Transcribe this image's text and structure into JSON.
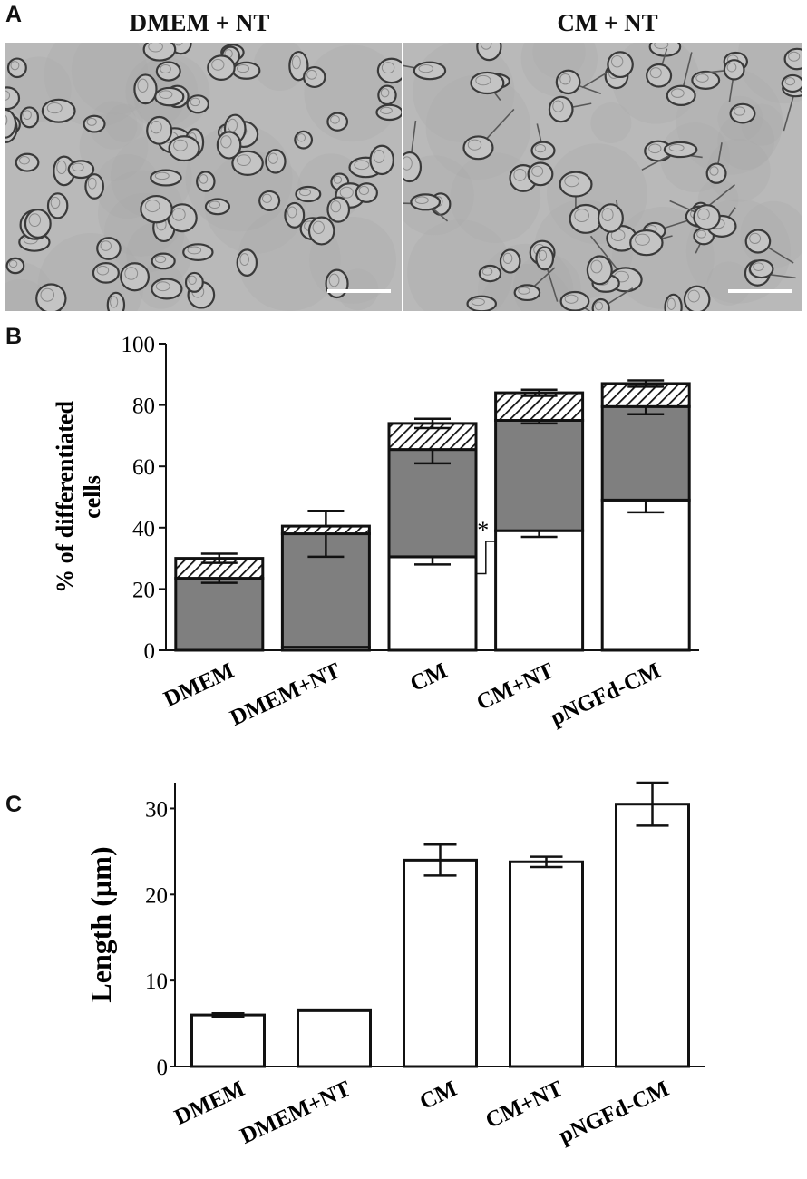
{
  "panels": {
    "a": {
      "letter": "A"
    },
    "b": {
      "letter": "B"
    },
    "c": {
      "letter": "C"
    }
  },
  "micrographs": [
    {
      "title": "DMEM + NT"
    },
    {
      "title": "CM + NT"
    }
  ],
  "colors": {
    "photo_background": "#b9b9b9",
    "cell_outline": "#3a3a3a",
    "differentiated_grey": "#7f7f7f",
    "bar_white": "#ffffff",
    "axis": "#111111"
  },
  "chart_data": [
    {
      "type": "bar",
      "stacked": true,
      "ylabel": "% of differentiated cells",
      "ylim": [
        0,
        100
      ],
      "yticks": [
        0,
        20,
        40,
        60,
        80,
        100
      ],
      "categories": [
        "DMEM",
        "DMEM+NT",
        "CM",
        "CM+NT",
        "pNGFd-CM"
      ],
      "series": [
        {
          "fill": "white",
          "values": [
            0,
            1,
            30.5,
            39,
            49
          ],
          "errors": [
            0,
            0,
            2.5,
            2,
            4
          ]
        },
        {
          "fill": "grey",
          "values": [
            23.5,
            37,
            35,
            36,
            30.5
          ],
          "errors": [
            1.5,
            7.5,
            4.5,
            1,
            2.5
          ]
        },
        {
          "fill": "hatched",
          "values": [
            6.5,
            2.5,
            8.5,
            9,
            7.5
          ],
          "errors": [
            1.5,
            0,
            1.5,
            1,
            1
          ]
        }
      ],
      "annotation": {
        "text": "*",
        "between": [
          "CM",
          "CM+NT"
        ]
      },
      "grid": false
    },
    {
      "type": "bar",
      "ylabel": "Length (µm)",
      "ylim": [
        0,
        33
      ],
      "yticks": [
        0,
        10,
        20,
        30
      ],
      "categories": [
        "DMEM",
        "DMEM+NT",
        "CM",
        "CM+NT",
        "pNGFd-CM"
      ],
      "values": [
        6,
        6.5,
        24,
        23.8,
        30.5
      ],
      "errors": [
        0.2,
        0,
        1.8,
        0.6,
        2.5
      ],
      "grid": false
    }
  ]
}
